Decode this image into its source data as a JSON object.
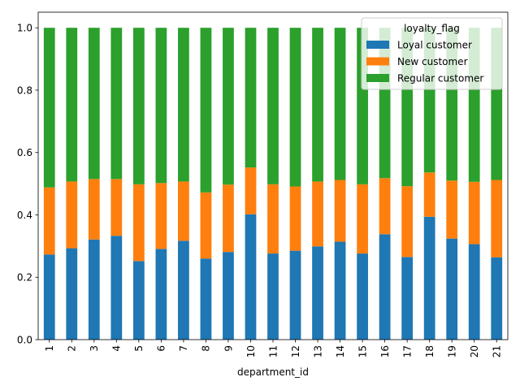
{
  "chart_data": {
    "type": "bar",
    "stacked": true,
    "orientation": "vertical",
    "categories": [
      "1",
      "2",
      "3",
      "4",
      "5",
      "6",
      "7",
      "8",
      "9",
      "10",
      "11",
      "12",
      "13",
      "14",
      "15",
      "16",
      "17",
      "18",
      "19",
      "20",
      "21"
    ],
    "series": [
      {
        "name": "Loyal customer",
        "color": "#1f77b4",
        "values": [
          0.273,
          0.293,
          0.321,
          0.333,
          0.252,
          0.291,
          0.317,
          0.26,
          0.281,
          0.402,
          0.276,
          0.285,
          0.299,
          0.314,
          0.276,
          0.338,
          0.265,
          0.394,
          0.324,
          0.306,
          0.264
        ]
      },
      {
        "name": "New customer",
        "color": "#ff7f0e",
        "values": [
          0.215,
          0.214,
          0.194,
          0.182,
          0.246,
          0.211,
          0.19,
          0.212,
          0.216,
          0.15,
          0.222,
          0.206,
          0.208,
          0.198,
          0.222,
          0.18,
          0.227,
          0.142,
          0.186,
          0.2,
          0.248
        ]
      },
      {
        "name": "Regular customer",
        "color": "#2ca02c",
        "values": [
          0.512,
          0.493,
          0.485,
          0.485,
          0.502,
          0.498,
          0.493,
          0.528,
          0.503,
          0.448,
          0.502,
          0.509,
          0.493,
          0.488,
          0.502,
          0.482,
          0.508,
          0.464,
          0.49,
          0.494,
          0.488
        ]
      }
    ],
    "xlabel": "department_id",
    "ylabel": "",
    "ylim": [
      0,
      1.05
    ],
    "yticks": [
      "0.0",
      "0.2",
      "0.4",
      "0.6",
      "0.8",
      "1.0"
    ],
    "grid": false,
    "legend": {
      "title": "loyalty_flag",
      "placement": "upper-right"
    }
  }
}
